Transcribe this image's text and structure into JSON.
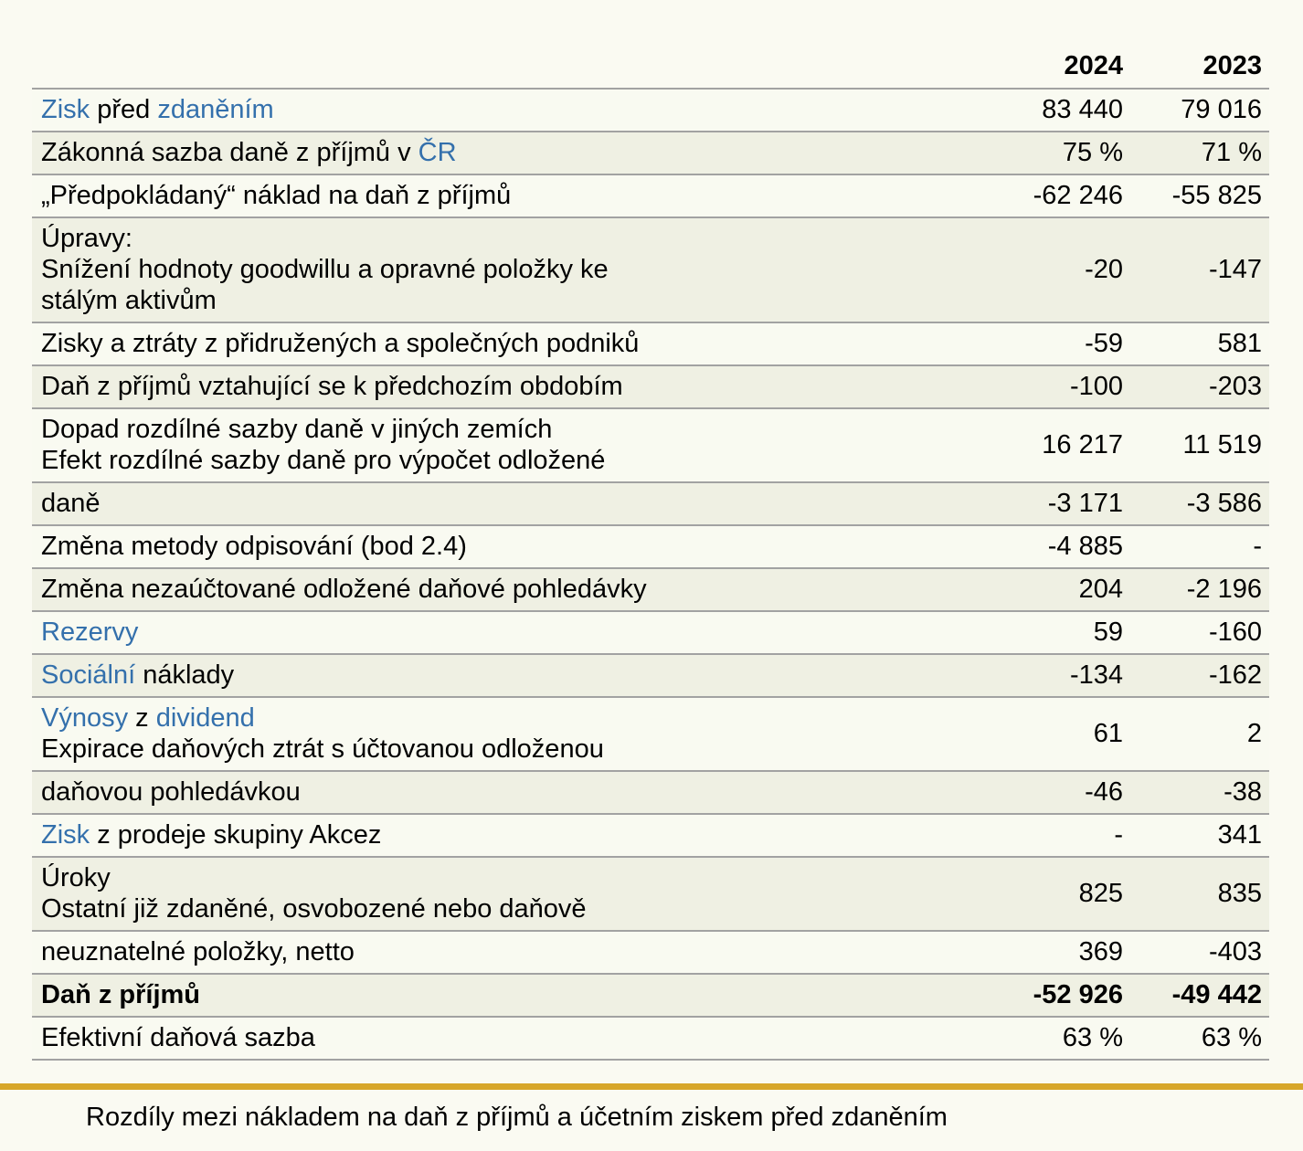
{
  "page": {
    "caption": "Rozdíly mezi nákladem na daň z příjmů a účetním ziskem před zdaněním"
  },
  "colors": {
    "page_bg": "#FAFAF2",
    "row_plain": "#F9FAF1",
    "row_shade": "#EFF0E3",
    "row_border": "#A2A2A2",
    "link_blue": "#3470AC",
    "divider_gold": "#D7A62A"
  },
  "table": {
    "columns": [
      "2024",
      "2023"
    ],
    "rows": [
      {
        "lines": [
          [
            {
              "text": "Zisk",
              "link": true
            },
            {
              "text": " před ",
              "link": false
            },
            {
              "text": "zdaněním",
              "link": true
            }
          ]
        ],
        "v2024": "83 440",
        "v2023": "79 016",
        "shaded": false,
        "bold": false
      },
      {
        "lines": [
          [
            {
              "text": "Zákonná sazba daně z příjmů v ",
              "link": false
            },
            {
              "text": "ČR",
              "link": true
            }
          ]
        ],
        "v2024": "75 %",
        "v2023": "71 %",
        "shaded": true,
        "bold": false
      },
      {
        "lines": [
          [
            {
              "text": "„Předpokládaný“ náklad na daň z příjmů",
              "link": false
            }
          ]
        ],
        "v2024": "-62 246",
        "v2023": "-55 825",
        "shaded": false,
        "bold": false
      },
      {
        "lines": [
          [
            {
              "text": "Úpravy:",
              "link": false
            }
          ],
          [
            {
              "text": "Snížení hodnoty goodwillu a opravné položky ke",
              "link": false
            }
          ],
          [
            {
              "text": "stálým aktivům",
              "link": false
            }
          ]
        ],
        "v2024": "-20",
        "v2023": "-147",
        "shaded": true,
        "bold": false
      },
      {
        "lines": [
          [
            {
              "text": "Zisky a ztráty z přidružených a společných podniků",
              "link": false
            }
          ]
        ],
        "v2024": "-59",
        "v2023": "581",
        "shaded": false,
        "bold": false
      },
      {
        "lines": [
          [
            {
              "text": "Daň z příjmů vztahující se k předchozím obdobím",
              "link": false
            }
          ]
        ],
        "v2024": "-100",
        "v2023": "-203",
        "shaded": true,
        "bold": false
      },
      {
        "lines": [
          [
            {
              "text": "Dopad rozdílné sazby daně v jiných zemích",
              "link": false
            }
          ],
          [
            {
              "text": "Efekt rozdílné sazby daně pro výpočet odložené",
              "link": false
            }
          ]
        ],
        "v2024": "16 217",
        "v2023": "11 519",
        "shaded": false,
        "bold": false
      },
      {
        "lines": [
          [
            {
              "text": "daně",
              "link": false
            }
          ]
        ],
        "v2024": "-3 171",
        "v2023": "-3 586",
        "shaded": true,
        "bold": false
      },
      {
        "lines": [
          [
            {
              "text": "Změna metody odpisování (bod 2.4)",
              "link": false
            }
          ]
        ],
        "v2024": "-4 885",
        "v2023": "-",
        "shaded": false,
        "bold": false
      },
      {
        "lines": [
          [
            {
              "text": "Změna nezaúčtované odložené daňové pohledávky",
              "link": false
            }
          ]
        ],
        "v2024": "204",
        "v2023": "-2 196",
        "shaded": true,
        "bold": false
      },
      {
        "lines": [
          [
            {
              "text": "Rezervy",
              "link": true
            }
          ]
        ],
        "v2024": "59",
        "v2023": "-160",
        "shaded": false,
        "bold": false
      },
      {
        "lines": [
          [
            {
              "text": "Sociální",
              "link": true
            },
            {
              "text": " náklady",
              "link": false
            }
          ]
        ],
        "v2024": "-134",
        "v2023": "-162",
        "shaded": true,
        "bold": false
      },
      {
        "lines": [
          [
            {
              "text": "Výnosy",
              "link": true
            },
            {
              "text": " z ",
              "link": false
            },
            {
              "text": "dividend",
              "link": true
            }
          ],
          [
            {
              "text": "Expirace daňových ztrát s účtovanou odloženou",
              "link": false
            }
          ]
        ],
        "v2024": "61",
        "v2023": "2",
        "shaded": false,
        "bold": false
      },
      {
        "lines": [
          [
            {
              "text": "daňovou pohledávkou",
              "link": false
            }
          ]
        ],
        "v2024": "-46",
        "v2023": "-38",
        "shaded": true,
        "bold": false
      },
      {
        "lines": [
          [
            {
              "text": "Zisk",
              "link": true
            },
            {
              "text": " z prodeje skupiny Akcez",
              "link": false
            }
          ]
        ],
        "v2024": "-",
        "v2023": "341",
        "shaded": false,
        "bold": false
      },
      {
        "lines": [
          [
            {
              "text": "Úroky",
              "link": false
            }
          ],
          [
            {
              "text": "Ostatní již zdaněné, osvobozené nebo daňově",
              "link": false
            }
          ]
        ],
        "v2024": "825",
        "v2023": "835",
        "shaded": true,
        "bold": false
      },
      {
        "lines": [
          [
            {
              "text": "neuznatelné položky, netto",
              "link": false
            }
          ]
        ],
        "v2024": "369",
        "v2023": "-403",
        "shaded": false,
        "bold": false
      },
      {
        "lines": [
          [
            {
              "text": "Daň z příjmů",
              "link": false
            }
          ]
        ],
        "v2024": "-52 926",
        "v2023": "-49 442",
        "shaded": true,
        "bold": true
      },
      {
        "lines": [
          [
            {
              "text": "Efektivní daňová sazba",
              "link": false
            }
          ]
        ],
        "v2024": "63 %",
        "v2023": "63 %",
        "shaded": false,
        "bold": false
      }
    ]
  }
}
